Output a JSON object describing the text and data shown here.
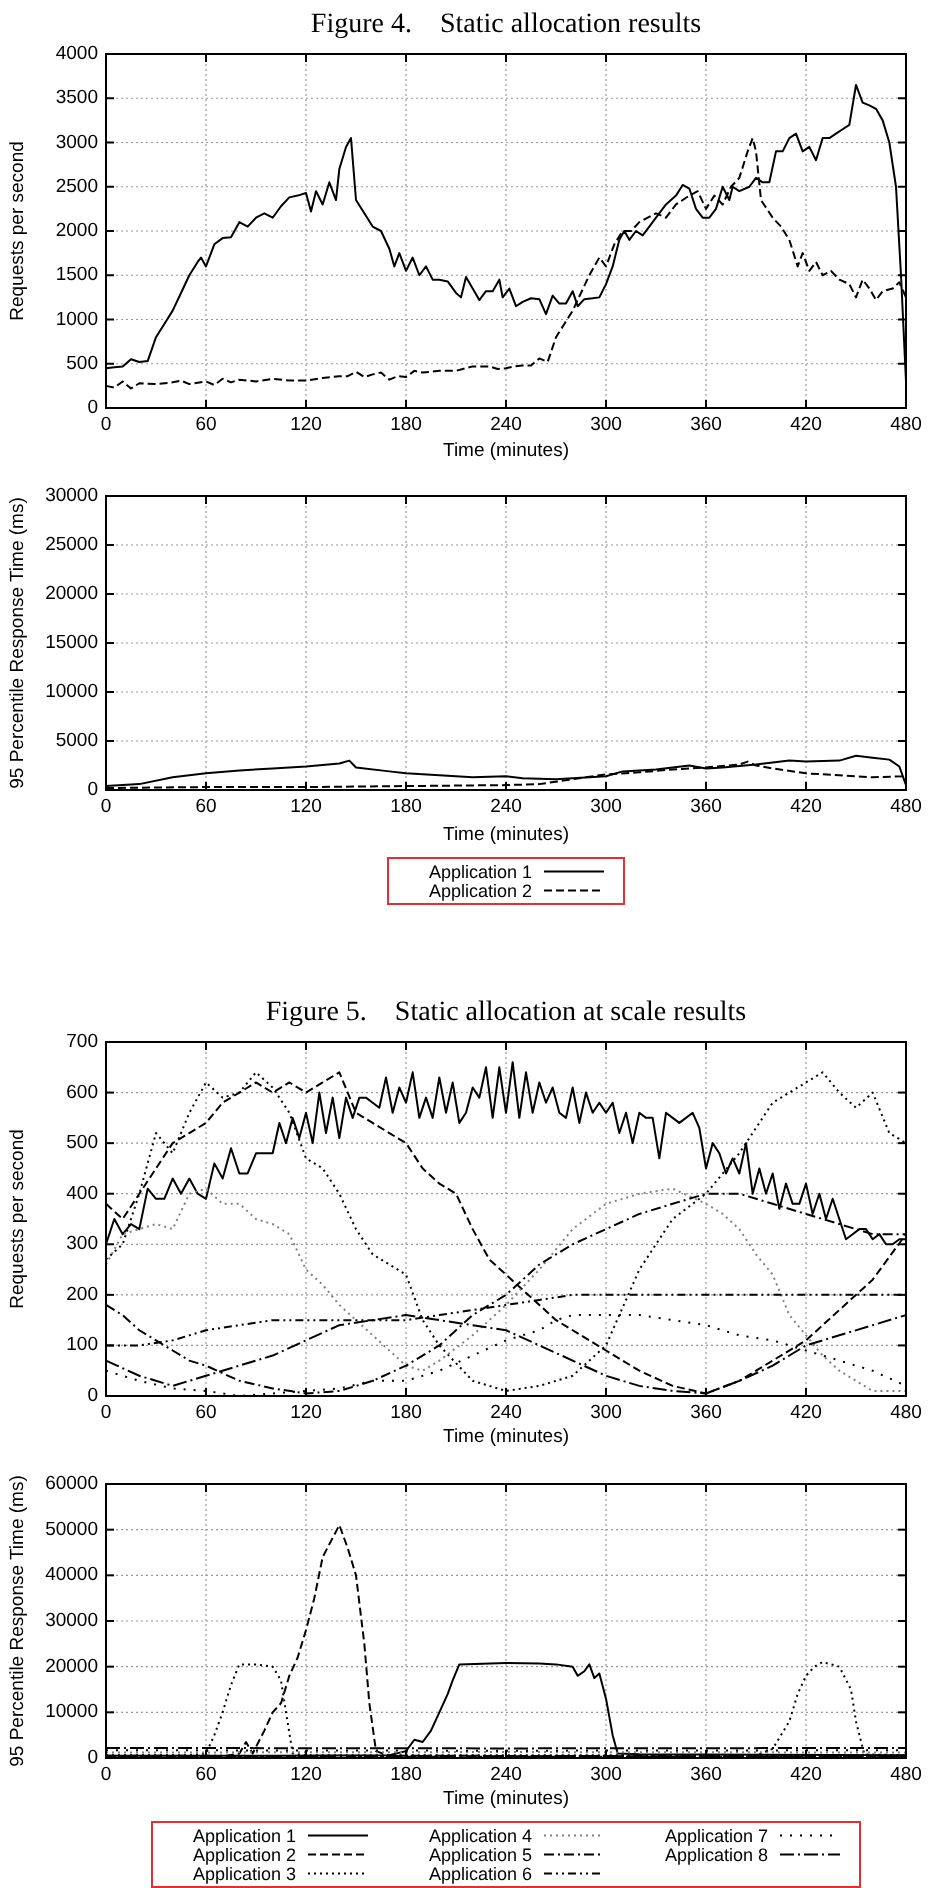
{
  "chart_data": [
    {
      "type": "line",
      "title": "Figure 4.    Static allocation results",
      "xlabel": "Time (minutes)",
      "ylabel": "Requests per second",
      "xlim": [
        0,
        480
      ],
      "xticks": [
        0,
        60,
        120,
        180,
        240,
        300,
        360,
        420,
        480
      ],
      "ylim": [
        0,
        4000
      ],
      "yticks": [
        0,
        500,
        1000,
        1500,
        2000,
        2500,
        3000,
        3500,
        4000
      ],
      "grid": true,
      "series": [
        {
          "color": "#000000",
          "line_style": "solid",
          "x": [
            0,
            5,
            10,
            15,
            20,
            25,
            30,
            35,
            40,
            45,
            50,
            55,
            57,
            60,
            65,
            70,
            75,
            80,
            85,
            90,
            95,
            100,
            105,
            110,
            115,
            120,
            123,
            126,
            130,
            134,
            138,
            140,
            144,
            147,
            150,
            155,
            160,
            165,
            170,
            173,
            176,
            180,
            184,
            188,
            192,
            196,
            200,
            205,
            210,
            213,
            216,
            220,
            224,
            228,
            232,
            236,
            238,
            242,
            246,
            250,
            255,
            260,
            264,
            268,
            272,
            276,
            280,
            283,
            287,
            292,
            296,
            300,
            304,
            308,
            311,
            314,
            318,
            322,
            326,
            330,
            336,
            342,
            346,
            350,
            354,
            358,
            362,
            366,
            370,
            374,
            376,
            380,
            386,
            390,
            394,
            398,
            402,
            406,
            410,
            414,
            418,
            422,
            426,
            430,
            434,
            438,
            442,
            446,
            450,
            454,
            458,
            462,
            466,
            470,
            474,
            477,
            480
          ],
          "values": [
            450,
            460,
            470,
            550,
            520,
            530,
            800,
            950,
            1100,
            1300,
            1500,
            1650,
            1700,
            1600,
            1850,
            1920,
            1930,
            2100,
            2050,
            2150,
            2200,
            2150,
            2280,
            2380,
            2400,
            2430,
            2220,
            2450,
            2300,
            2550,
            2350,
            2700,
            2950,
            3050,
            2350,
            2200,
            2050,
            2000,
            1800,
            1600,
            1750,
            1550,
            1700,
            1500,
            1600,
            1450,
            1450,
            1430,
            1300,
            1250,
            1480,
            1350,
            1220,
            1320,
            1320,
            1450,
            1250,
            1350,
            1150,
            1200,
            1240,
            1230,
            1060,
            1270,
            1180,
            1180,
            1320,
            1150,
            1230,
            1240,
            1250,
            1400,
            1600,
            1900,
            2000,
            1900,
            2000,
            1950,
            2050,
            2150,
            2300,
            2400,
            2520,
            2480,
            2250,
            2150,
            2150,
            2250,
            2500,
            2350,
            2500,
            2450,
            2500,
            2600,
            2550,
            2550,
            2900,
            2900,
            3050,
            3100,
            2900,
            2950,
            2800,
            3050,
            3050,
            3100,
            3150,
            3200,
            3650,
            3450,
            3420,
            3380,
            3250,
            3000,
            2500,
            1500,
            300
          ]
        },
        {
          "color": "#000000",
          "line_style": "dashed",
          "x": [
            0,
            5,
            10,
            15,
            20,
            30,
            40,
            45,
            50,
            60,
            65,
            70,
            75,
            80,
            90,
            100,
            110,
            120,
            130,
            140,
            145,
            150,
            155,
            160,
            165,
            170,
            175,
            180,
            185,
            190,
            200,
            210,
            220,
            230,
            235,
            240,
            245,
            250,
            255,
            260,
            265,
            270,
            275,
            280,
            285,
            290,
            296,
            300,
            305,
            310,
            315,
            320,
            330,
            336,
            342,
            350,
            355,
            360,
            365,
            370,
            375,
            380,
            385,
            388,
            390,
            393,
            400,
            405,
            410,
            415,
            418,
            422,
            426,
            430,
            435,
            440,
            446,
            450,
            454,
            458,
            462,
            466,
            472,
            476,
            480
          ],
          "values": [
            250,
            230,
            300,
            220,
            280,
            270,
            290,
            310,
            270,
            300,
            260,
            330,
            290,
            320,
            300,
            330,
            310,
            310,
            340,
            360,
            360,
            410,
            350,
            380,
            400,
            320,
            360,
            350,
            420,
            400,
            420,
            420,
            470,
            470,
            440,
            450,
            470,
            480,
            480,
            560,
            520,
            800,
            950,
            1100,
            1300,
            1500,
            1700,
            1600,
            1850,
            2000,
            2000,
            2100,
            2200,
            2150,
            2300,
            2400,
            2450,
            2250,
            2400,
            2300,
            2500,
            2600,
            2900,
            3050,
            2900,
            2350,
            2150,
            2050,
            1900,
            1600,
            1750,
            1550,
            1650,
            1500,
            1550,
            1450,
            1400,
            1250,
            1450,
            1350,
            1220,
            1320,
            1350,
            1420,
            1250
          ]
        }
      ]
    },
    {
      "type": "line",
      "xlabel": "Time (minutes)",
      "ylabel": "95 Percentile Response Time (ms)",
      "xlim": [
        0,
        480
      ],
      "xticks": [
        0,
        60,
        120,
        180,
        240,
        300,
        360,
        420,
        480
      ],
      "ylim": [
        0,
        30000
      ],
      "yticks": [
        0,
        5000,
        10000,
        15000,
        20000,
        25000,
        30000
      ],
      "grid": true,
      "legend": "bottom",
      "series": [
        {
          "name": "Application 1",
          "color": "#000000",
          "line_style": "solid",
          "x": [
            0,
            20,
            40,
            60,
            80,
            100,
            120,
            140,
            146,
            150,
            170,
            180,
            200,
            220,
            240,
            250,
            270,
            290,
            300,
            310,
            330,
            350,
            360,
            370,
            390,
            400,
            410,
            420,
            440,
            450,
            460,
            470,
            476,
            480
          ],
          "values": [
            400,
            600,
            1300,
            1700,
            2000,
            2200,
            2400,
            2700,
            3000,
            2300,
            1900,
            1700,
            1500,
            1300,
            1400,
            1200,
            1100,
            1300,
            1400,
            1900,
            2100,
            2500,
            2200,
            2300,
            2600,
            2800,
            3000,
            2900,
            3000,
            3500,
            3300,
            3100,
            2400,
            500
          ]
        },
        {
          "name": "Application 2",
          "color": "#000000",
          "line_style": "dashed",
          "x": [
            0,
            60,
            120,
            180,
            240,
            260,
            280,
            300,
            320,
            340,
            360,
            380,
            385,
            390,
            400,
            420,
            440,
            460,
            480
          ],
          "values": [
            200,
            300,
            300,
            400,
            500,
            600,
            1100,
            1600,
            1800,
            2100,
            2300,
            2600,
            2900,
            2500,
            2200,
            1700,
            1500,
            1300,
            1400
          ]
        }
      ]
    },
    {
      "type": "line",
      "title": "Figure 5.    Static allocation at scale results",
      "xlabel": "Time (minutes)",
      "ylabel": "Requests per second",
      "xlim": [
        0,
        480
      ],
      "xticks": [
        0,
        60,
        120,
        180,
        240,
        300,
        360,
        420,
        480
      ],
      "ylim": [
        0,
        700
      ],
      "yticks": [
        0,
        100,
        200,
        300,
        400,
        500,
        600,
        700
      ],
      "grid": true,
      "series": [
        {
          "color": "#000000",
          "line_style": "solid",
          "x": [
            0,
            5,
            10,
            15,
            20,
            25,
            30,
            35,
            40,
            45,
            50,
            55,
            60,
            65,
            70,
            75,
            80,
            85,
            90,
            95,
            100,
            104,
            108,
            112,
            116,
            120,
            124,
            128,
            132,
            136,
            140,
            144,
            148,
            152,
            156,
            160,
            164,
            168,
            172,
            176,
            180,
            184,
            188,
            192,
            196,
            200,
            204,
            208,
            212,
            216,
            220,
            224,
            228,
            232,
            236,
            240,
            244,
            248,
            252,
            256,
            260,
            264,
            268,
            272,
            276,
            280,
            284,
            288,
            292,
            296,
            300,
            304,
            308,
            312,
            316,
            320,
            324,
            328,
            332,
            336,
            340,
            344,
            348,
            352,
            356,
            360,
            364,
            368,
            372,
            376,
            380,
            384,
            388,
            392,
            396,
            400,
            404,
            408,
            412,
            416,
            420,
            424,
            428,
            432,
            436,
            440,
            444,
            448,
            452,
            456,
            460,
            464,
            468,
            472,
            476,
            480
          ],
          "values": [
            300,
            350,
            320,
            340,
            330,
            410,
            390,
            390,
            430,
            400,
            430,
            400,
            390,
            460,
            430,
            490,
            440,
            440,
            480,
            480,
            480,
            540,
            500,
            550,
            510,
            560,
            500,
            600,
            520,
            590,
            510,
            590,
            550,
            590,
            590,
            580,
            570,
            630,
            560,
            610,
            580,
            640,
            550,
            590,
            550,
            630,
            560,
            620,
            540,
            560,
            610,
            590,
            650,
            550,
            650,
            560,
            660,
            550,
            640,
            560,
            620,
            580,
            610,
            560,
            550,
            610,
            540,
            600,
            560,
            580,
            560,
            580,
            520,
            560,
            500,
            560,
            550,
            550,
            470,
            560,
            550,
            540,
            550,
            560,
            530,
            450,
            500,
            480,
            440,
            470,
            440,
            500,
            400,
            450,
            400,
            440,
            370,
            420,
            380,
            380,
            420,
            360,
            400,
            350,
            390,
            350,
            310,
            320,
            330,
            330,
            310,
            320,
            300,
            300,
            310,
            310
          ]
        },
        {
          "color": "#000000",
          "line_style": "dashed",
          "x": [
            0,
            10,
            20,
            30,
            40,
            50,
            60,
            70,
            80,
            90,
            100,
            110,
            120,
            130,
            140,
            150,
            160,
            170,
            180,
            190,
            200,
            210,
            220,
            230,
            240,
            250,
            260,
            270,
            280,
            300,
            320,
            340,
            360,
            380,
            400,
            420,
            440,
            460,
            480
          ],
          "values": [
            380,
            350,
            400,
            450,
            500,
            520,
            540,
            580,
            600,
            620,
            600,
            620,
            600,
            620,
            640,
            560,
            540,
            520,
            500,
            450,
            420,
            400,
            330,
            270,
            240,
            210,
            180,
            150,
            130,
            90,
            50,
            20,
            5,
            30,
            70,
            110,
            170,
            230,
            320
          ]
        },
        {
          "color": "#000000",
          "line_style": "dotted",
          "x": [
            0,
            10,
            20,
            30,
            40,
            50,
            60,
            70,
            80,
            90,
            100,
            110,
            120,
            130,
            140,
            150,
            160,
            170,
            180,
            190,
            200,
            220,
            240,
            260,
            280,
            300,
            320,
            340,
            360,
            380,
            400,
            410,
            420,
            430,
            440,
            450,
            460,
            470,
            480
          ],
          "values": [
            270,
            300,
            400,
            520,
            480,
            560,
            620,
            590,
            600,
            640,
            610,
            560,
            470,
            450,
            400,
            330,
            280,
            260,
            240,
            150,
            100,
            30,
            10,
            20,
            40,
            100,
            250,
            350,
            400,
            480,
            580,
            600,
            620,
            640,
            600,
            570,
            600,
            520,
            500
          ]
        },
        {
          "color": "#808080",
          "line_style": "dotted",
          "x": [
            0,
            10,
            20,
            30,
            40,
            50,
            60,
            70,
            80,
            90,
            100,
            110,
            120,
            130,
            140,
            150,
            160,
            170,
            180,
            190,
            200,
            220,
            240,
            260,
            280,
            300,
            320,
            340,
            360,
            370,
            380,
            390,
            400,
            410,
            420,
            430,
            440,
            460,
            480
          ],
          "values": [
            260,
            320,
            330,
            340,
            330,
            400,
            410,
            380,
            380,
            350,
            340,
            320,
            250,
            220,
            180,
            150,
            120,
            90,
            60,
            50,
            70,
            120,
            180,
            250,
            330,
            380,
            400,
            410,
            380,
            360,
            330,
            280,
            240,
            160,
            120,
            80,
            50,
            10,
            10
          ]
        },
        {
          "color": "#000000",
          "line_style": "dashdot",
          "x": [
            0,
            10,
            20,
            30,
            40,
            50,
            60,
            80,
            100,
            120,
            140,
            160,
            180,
            200,
            220,
            240,
            260,
            280,
            300,
            320,
            340,
            350,
            360,
            380,
            400,
            420,
            440,
            460,
            480
          ],
          "values": [
            180,
            160,
            130,
            110,
            90,
            70,
            60,
            30,
            15,
            5,
            10,
            30,
            60,
            100,
            160,
            200,
            260,
            300,
            330,
            360,
            380,
            390,
            400,
            400,
            380,
            360,
            340,
            320,
            320
          ]
        },
        {
          "color": "#000000",
          "line_style": "dashdotdot",
          "x": [
            0,
            20,
            40,
            60,
            80,
            100,
            120,
            140,
            160,
            180,
            200,
            220,
            240,
            260,
            280,
            300,
            320,
            340,
            360,
            380,
            400,
            420,
            440,
            460,
            480
          ],
          "values": [
            100,
            100,
            110,
            130,
            140,
            150,
            150,
            150,
            150,
            150,
            160,
            170,
            180,
            190,
            200,
            200,
            200,
            200,
            200,
            200,
            200,
            200,
            200,
            200,
            200
          ]
        },
        {
          "color": "#000000",
          "line_style": "sparsedot",
          "x": [
            0,
            20,
            40,
            60,
            80,
            100,
            120,
            140,
            160,
            180,
            200,
            220,
            240,
            260,
            270,
            280,
            300,
            320,
            340,
            360,
            380,
            400,
            420,
            440,
            460,
            480
          ],
          "values": [
            50,
            30,
            15,
            10,
            0,
            5,
            10,
            15,
            30,
            30,
            50,
            80,
            110,
            130,
            150,
            160,
            160,
            160,
            150,
            140,
            120,
            110,
            90,
            70,
            50,
            20
          ]
        },
        {
          "color": "#000000",
          "line_style": "longdashdot",
          "x": [
            0,
            20,
            40,
            60,
            80,
            100,
            120,
            140,
            160,
            180,
            200,
            220,
            240,
            260,
            280,
            300,
            320,
            340,
            360,
            380,
            400,
            420,
            440,
            460,
            480
          ],
          "values": [
            70,
            40,
            20,
            40,
            60,
            80,
            110,
            140,
            150,
            160,
            150,
            140,
            130,
            100,
            70,
            40,
            20,
            10,
            5,
            30,
            60,
            100,
            120,
            140,
            160
          ]
        }
      ]
    },
    {
      "type": "line",
      "xlabel": "Time (minutes)",
      "ylabel": "95 Percentile Response Time (ms)",
      "xlim": [
        0,
        480
      ],
      "xticks": [
        0,
        60,
        120,
        180,
        240,
        300,
        360,
        420,
        480
      ],
      "ylim": [
        0,
        60000
      ],
      "yticks": [
        0,
        10000,
        20000,
        30000,
        40000,
        50000,
        60000
      ],
      "grid": true,
      "legend": "bottom",
      "series": [
        {
          "name": "Application 1",
          "color": "#000000",
          "line_style": "solid",
          "x": [
            0,
            100,
            170,
            180,
            185,
            190,
            195,
            200,
            205,
            208,
            212,
            240,
            260,
            270,
            280,
            283,
            287,
            290,
            293,
            296,
            300,
            304,
            307,
            320,
            480
          ],
          "values": [
            500,
            500,
            600,
            1500,
            4000,
            3500,
            6000,
            10000,
            14000,
            17000,
            20500,
            20800,
            20700,
            20500,
            20000,
            18000,
            19000,
            20500,
            17500,
            18500,
            13000,
            5000,
            1000,
            800,
            600
          ]
        },
        {
          "name": "Application 2",
          "color": "#000000",
          "line_style": "dashed",
          "x": [
            0,
            70,
            80,
            84,
            88,
            95,
            100,
            105,
            110,
            115,
            120,
            125,
            130,
            140,
            145,
            150,
            155,
            158,
            162,
            170,
            480
          ],
          "values": [
            300,
            300,
            1000,
            3500,
            1000,
            6000,
            10000,
            12000,
            18000,
            22000,
            28000,
            35000,
            44000,
            51000,
            46000,
            40000,
            25000,
            12000,
            1500,
            500,
            300
          ]
        },
        {
          "name": "Application 3",
          "color": "#000000",
          "line_style": "dotted",
          "x": [
            0,
            50,
            60,
            65,
            70,
            75,
            80,
            90,
            100,
            105,
            108,
            112,
            120,
            390,
            400,
            410,
            415,
            420,
            425,
            430,
            440,
            447,
            450,
            455,
            480
          ],
          "values": [
            600,
            600,
            1000,
            5000,
            10000,
            16000,
            20500,
            20500,
            20000,
            17000,
            10000,
            1000,
            600,
            600,
            2000,
            8000,
            14000,
            18000,
            20000,
            21000,
            20000,
            15000,
            8000,
            800,
            600
          ]
        },
        {
          "name": "Application 4",
          "color": "#808080",
          "line_style": "dotted",
          "x": [
            0,
            240,
            480
          ],
          "values": [
            1200,
            1300,
            1200
          ]
        },
        {
          "name": "Application 5",
          "color": "#000000",
          "line_style": "dashdot",
          "x": [
            0,
            240,
            480
          ],
          "values": [
            300,
            300,
            300
          ]
        },
        {
          "name": "Application 6",
          "color": "#000000",
          "line_style": "dashdotdot",
          "x": [
            0,
            240,
            480
          ],
          "values": [
            500,
            400,
            500
          ]
        },
        {
          "name": "Application 7",
          "color": "#000000",
          "line_style": "sparsedot",
          "x": [
            0,
            240,
            480
          ],
          "values": [
            1700,
            1600,
            1700
          ]
        },
        {
          "name": "Application 8",
          "color": "#000000",
          "line_style": "longdashdot",
          "x": [
            0,
            240,
            480
          ],
          "values": [
            2200,
            2100,
            2200
          ]
        }
      ]
    }
  ]
}
